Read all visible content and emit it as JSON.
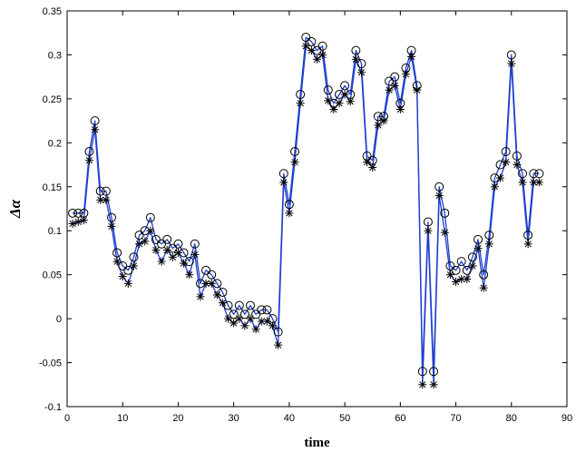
{
  "chart_data": {
    "type": "line",
    "title": "",
    "xlabel": "time",
    "ylabel": "Δα",
    "xlim": [
      0,
      90
    ],
    "ylim": [
      -0.1,
      0.35
    ],
    "xticks": [
      0,
      10,
      20,
      30,
      40,
      50,
      60,
      70,
      80,
      90
    ],
    "yticks": [
      -0.1,
      -0.05,
      0,
      0.05,
      0.1,
      0.15,
      0.2,
      0.25,
      0.3,
      0.35
    ],
    "xtick_labels": [
      "0",
      "10",
      "20",
      "30",
      "40",
      "50",
      "60",
      "70",
      "80",
      "90"
    ],
    "ytick_labels": [
      "-0.1",
      "-0.05",
      "0",
      "0.05",
      "0.1",
      "0.15",
      "0.2",
      "0.25",
      "0.3",
      "0.35"
    ],
    "grid": false,
    "colors": {
      "line": "#1f3fcf",
      "markers": "#000000"
    },
    "series": [
      {
        "marker": "circle",
        "x": [
          1,
          2,
          3,
          4,
          5,
          6,
          7,
          8,
          9,
          10,
          11,
          12,
          13,
          14,
          15,
          16,
          17,
          18,
          19,
          20,
          21,
          22,
          23,
          24,
          25,
          26,
          27,
          28,
          29,
          30,
          31,
          32,
          33,
          34,
          35,
          36,
          37,
          38,
          39,
          40,
          41,
          42,
          43,
          44,
          45,
          46,
          47,
          48,
          49,
          50,
          51,
          52,
          53,
          54,
          55,
          56,
          57,
          58,
          59,
          60,
          61,
          62,
          63,
          64,
          65,
          66,
          67,
          68,
          69,
          70,
          71,
          72,
          73,
          74,
          75,
          76,
          77,
          78,
          79,
          80,
          81,
          82,
          83,
          84,
          85
        ],
        "values": [
          0.12,
          0.12,
          0.12,
          0.19,
          0.225,
          0.145,
          0.145,
          0.115,
          0.075,
          0.06,
          0.055,
          0.07,
          0.095,
          0.1,
          0.115,
          0.09,
          0.085,
          0.09,
          0.08,
          0.085,
          0.075,
          0.065,
          0.085,
          0.04,
          0.055,
          0.05,
          0.04,
          0.03,
          0.015,
          0.005,
          0.015,
          0.005,
          0.015,
          0.005,
          0.01,
          0.01,
          0.0,
          -0.015,
          0.165,
          0.13,
          0.19,
          0.255,
          0.32,
          0.315,
          0.305,
          0.31,
          0.26,
          0.245,
          0.255,
          0.265,
          0.255,
          0.305,
          0.29,
          0.185,
          0.18,
          0.23,
          0.23,
          0.27,
          0.275,
          0.245,
          0.285,
          0.305,
          0.265,
          -0.06,
          0.11,
          -0.06,
          0.15,
          0.12,
          0.06,
          0.055,
          0.065,
          0.055,
          0.07,
          0.09,
          0.05,
          0.095,
          0.16,
          0.175,
          0.19,
          0.3,
          0.185,
          0.165,
          0.095,
          0.165,
          0.165
        ]
      },
      {
        "marker": "asterisk",
        "x": [
          1,
          2,
          3,
          4,
          5,
          6,
          7,
          8,
          9,
          10,
          11,
          12,
          13,
          14,
          15,
          16,
          17,
          18,
          19,
          20,
          21,
          22,
          23,
          24,
          25,
          26,
          27,
          28,
          29,
          30,
          31,
          32,
          33,
          34,
          35,
          36,
          37,
          38,
          39,
          40,
          41,
          42,
          43,
          44,
          45,
          46,
          47,
          48,
          49,
          50,
          51,
          52,
          53,
          54,
          55,
          56,
          57,
          58,
          59,
          60,
          61,
          62,
          63,
          64,
          65,
          66,
          67,
          68,
          69,
          70,
          71,
          72,
          73,
          74,
          75,
          76,
          77,
          78,
          79,
          80,
          81,
          82,
          83,
          84,
          85
        ],
        "values": [
          0.108,
          0.11,
          0.112,
          0.18,
          0.215,
          0.135,
          0.135,
          0.105,
          0.065,
          0.048,
          0.04,
          0.06,
          0.085,
          0.088,
          0.1,
          0.078,
          0.065,
          0.078,
          0.07,
          0.075,
          0.063,
          0.05,
          0.073,
          0.025,
          0.04,
          0.04,
          0.027,
          0.018,
          0.0,
          -0.005,
          0.0,
          -0.008,
          0.0,
          -0.012,
          -0.003,
          -0.003,
          -0.008,
          -0.03,
          0.155,
          0.12,
          0.178,
          0.245,
          0.31,
          0.305,
          0.295,
          0.3,
          0.248,
          0.238,
          0.245,
          0.255,
          0.247,
          0.295,
          0.28,
          0.178,
          0.172,
          0.22,
          0.225,
          0.26,
          0.265,
          0.238,
          0.278,
          0.298,
          0.26,
          -0.075,
          0.1,
          -0.075,
          0.14,
          0.098,
          0.05,
          0.042,
          0.045,
          0.045,
          0.06,
          0.08,
          0.035,
          0.085,
          0.15,
          0.16,
          0.178,
          0.29,
          0.175,
          0.155,
          0.085,
          0.155,
          0.155
        ]
      }
    ]
  }
}
